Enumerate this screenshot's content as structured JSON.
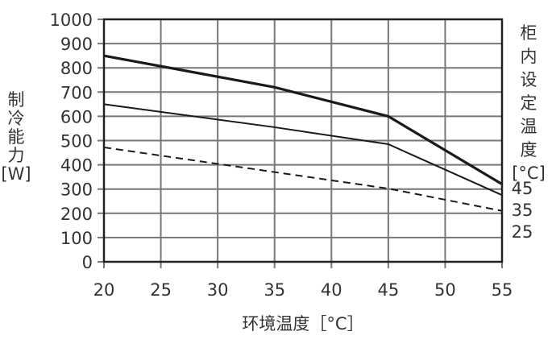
{
  "chart_data": {
    "type": "line",
    "title": "",
    "xlabel": "环境温度［°C］",
    "ylabel": [
      "制",
      "冷",
      "能",
      "力",
      "[W]"
    ],
    "y2label": [
      "柜",
      "内",
      "设",
      "定",
      "温",
      "度",
      "[°C]"
    ],
    "xlim": [
      20,
      55
    ],
    "ylim": [
      0,
      1000
    ],
    "grid": true,
    "x_ticks": [
      20,
      25,
      30,
      35,
      40,
      45,
      50,
      55
    ],
    "y_ticks": [
      0,
      100,
      200,
      300,
      400,
      500,
      600,
      700,
      800,
      900,
      1000
    ],
    "legend_position": "right (series labels at line ends)",
    "series": [
      {
        "name": "45",
        "style": "thick-solid",
        "x": [
          20,
          35,
          45,
          55
        ],
        "y": [
          850,
          720,
          600,
          320
        ]
      },
      {
        "name": "35",
        "style": "solid",
        "x": [
          20,
          35,
          45,
          55
        ],
        "y": [
          650,
          555,
          485,
          275
        ]
      },
      {
        "name": "25",
        "style": "dashed",
        "x": [
          20,
          45,
          55
        ],
        "y": [
          472,
          302,
          210
        ]
      }
    ],
    "series_labels": [
      "45",
      "35",
      "25"
    ]
  }
}
